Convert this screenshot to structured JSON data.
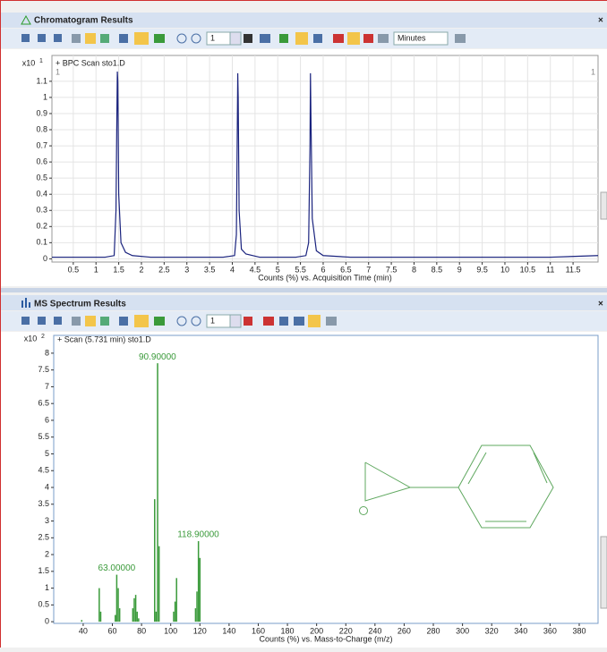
{
  "panels": [
    {
      "title": "Chromatogram Results",
      "toolbar": {
        "step": "1",
        "units": "Minutes"
      }
    },
    {
      "title": "MS Spectrum Results",
      "toolbar": {
        "step": "1"
      }
    }
  ],
  "chart_data": [
    {
      "type": "line",
      "title": "+ BPC Scan sto1.D",
      "multiplier": {
        "base": "x10",
        "exponent": "1"
      },
      "xlabel": "Counts (%) vs. Acquisition Time (min)",
      "corner_labels": [
        "1",
        "1"
      ],
      "color": "#1a237e",
      "x": [
        0.03,
        0.3,
        0.6,
        0.9,
        1.2,
        1.4,
        1.44,
        1.46,
        1.47,
        1.48,
        1.5,
        1.55,
        1.65,
        1.8,
        2.2,
        2.8,
        3.3,
        3.8,
        4.05,
        4.09,
        4.11,
        4.12,
        4.13,
        4.15,
        4.2,
        4.3,
        4.6,
        5.0,
        5.4,
        5.62,
        5.68,
        5.71,
        5.72,
        5.73,
        5.76,
        5.85,
        6.0,
        6.6,
        7.2,
        8.0,
        9.0,
        10.0,
        11.0,
        12.05
      ],
      "values": [
        0.01,
        0.01,
        0.01,
        0.01,
        0.01,
        0.02,
        0.3,
        0.9,
        1.16,
        1.1,
        0.4,
        0.1,
        0.04,
        0.02,
        0.01,
        0.01,
        0.01,
        0.01,
        0.02,
        0.15,
        0.8,
        1.15,
        1.0,
        0.3,
        0.06,
        0.03,
        0.01,
        0.01,
        0.01,
        0.02,
        0.1,
        0.7,
        1.15,
        0.9,
        0.25,
        0.05,
        0.02,
        0.01,
        0.01,
        0.01,
        0.01,
        0.01,
        0.01,
        0.02
      ],
      "xlim": [
        0.03,
        12.05
      ],
      "xticks": [
        0.5,
        1,
        1.5,
        2,
        2.5,
        3,
        3.5,
        4,
        4.5,
        5,
        5.5,
        6,
        6.5,
        7,
        7.5,
        8,
        8.5,
        9,
        9.5,
        10,
        10.5,
        11,
        11.5
      ],
      "ylim": [
        -0.02,
        1.26
      ],
      "yticks": [
        0,
        0.1,
        0.2,
        0.3,
        0.4,
        0.5,
        0.6,
        0.7,
        0.8,
        0.9,
        1,
        1.1
      ],
      "grid": true
    },
    {
      "type": "bar",
      "title": "+ Scan (5.731 min) sto1.D",
      "multiplier": {
        "base": "x10",
        "exponent": "2"
      },
      "xlabel": "Counts (%) vs. Mass-to-Charge (m/z)",
      "color": "#3a9a3a",
      "x": [
        39,
        51,
        52,
        62,
        63,
        64,
        65,
        74,
        75,
        76,
        77,
        78,
        89,
        90,
        91,
        92,
        102,
        103,
        104,
        117,
        118,
        119,
        120
      ],
      "values": [
        0.05,
        1.0,
        0.3,
        0.2,
        1.4,
        1.0,
        0.4,
        0.4,
        0.7,
        0.8,
        0.3,
        0.1,
        3.65,
        0.3,
        7.7,
        2.25,
        0.3,
        0.6,
        1.3,
        0.4,
        0.9,
        2.4,
        1.9
      ],
      "annotations": [
        {
          "x": 63.0,
          "label": "63.00000"
        },
        {
          "x": 90.9,
          "label": "90.90000"
        },
        {
          "x": 118.9,
          "label": "118.90000"
        }
      ],
      "xlim": [
        19.8,
        392.9
      ],
      "xticks": [
        40,
        60,
        80,
        100,
        120,
        140,
        160,
        180,
        200,
        220,
        240,
        260,
        280,
        300,
        320,
        340,
        360,
        380
      ],
      "ylim": [
        -0.05,
        8.53
      ],
      "yticks": [
        0,
        0.5,
        1,
        1.5,
        2,
        2.5,
        3,
        3.5,
        4,
        4.5,
        5,
        5.5,
        6,
        6.5,
        7,
        7.5,
        8
      ],
      "grid": false
    }
  ]
}
